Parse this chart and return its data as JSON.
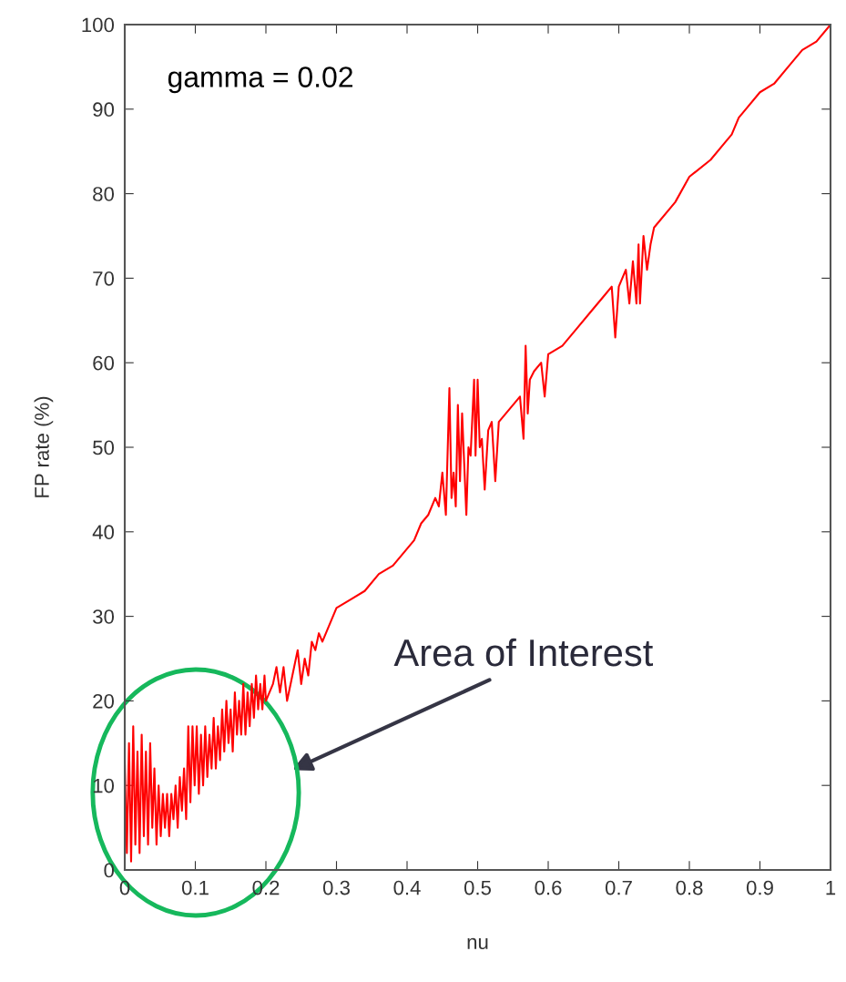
{
  "chart_data": {
    "type": "line",
    "xlabel": "nu",
    "ylabel": "FP rate (%)",
    "xlim": [
      0,
      1
    ],
    "ylim": [
      0,
      100
    ],
    "xticks": [
      0,
      0.1,
      0.2,
      0.3,
      0.4,
      0.5,
      0.6,
      0.7,
      0.8,
      0.9,
      1
    ],
    "yticks": [
      0,
      10,
      20,
      30,
      40,
      50,
      60,
      70,
      80,
      90,
      100
    ],
    "grid": false,
    "legend": false,
    "marker": "none",
    "line_style": "solid",
    "annotations": [
      "gamma = 0.02",
      "Area of Interest"
    ],
    "series": [
      {
        "color": "#ff0000",
        "x": [
          0,
          0.003,
          0.006,
          0.009,
          0.012,
          0.015,
          0.018,
          0.021,
          0.024,
          0.027,
          0.03,
          0.033,
          0.036,
          0.039,
          0.042,
          0.045,
          0.048,
          0.051,
          0.054,
          0.057,
          0.06,
          0.063,
          0.066,
          0.069,
          0.072,
          0.075,
          0.078,
          0.081,
          0.084,
          0.087,
          0.09,
          0.093,
          0.096,
          0.099,
          0.102,
          0.105,
          0.108,
          0.111,
          0.114,
          0.117,
          0.12,
          0.123,
          0.126,
          0.129,
          0.132,
          0.135,
          0.138,
          0.141,
          0.144,
          0.147,
          0.15,
          0.153,
          0.156,
          0.159,
          0.162,
          0.165,
          0.168,
          0.171,
          0.174,
          0.177,
          0.18,
          0.183,
          0.186,
          0.189,
          0.192,
          0.195,
          0.198,
          0.2,
          0.21,
          0.215,
          0.22,
          0.225,
          0.23,
          0.24,
          0.245,
          0.25,
          0.255,
          0.26,
          0.265,
          0.27,
          0.275,
          0.28,
          0.29,
          0.3,
          0.32,
          0.34,
          0.36,
          0.38,
          0.4,
          0.41,
          0.42,
          0.43,
          0.44,
          0.445,
          0.45,
          0.455,
          0.46,
          0.463,
          0.466,
          0.469,
          0.472,
          0.475,
          0.478,
          0.481,
          0.484,
          0.487,
          0.49,
          0.495,
          0.497,
          0.5,
          0.503,
          0.506,
          0.51,
          0.515,
          0.52,
          0.525,
          0.53,
          0.54,
          0.55,
          0.56,
          0.565,
          0.568,
          0.571,
          0.574,
          0.58,
          0.59,
          0.595,
          0.6,
          0.62,
          0.64,
          0.66,
          0.68,
          0.69,
          0.695,
          0.7,
          0.71,
          0.715,
          0.72,
          0.725,
          0.728,
          0.73,
          0.735,
          0.74,
          0.745,
          0.75,
          0.78,
          0.8,
          0.83,
          0.85,
          0.86,
          0.87,
          0.88,
          0.9,
          0.92,
          0.94,
          0.96,
          0.98,
          1.0
        ],
        "values": [
          13,
          2,
          15,
          1,
          17,
          3,
          14,
          2,
          16,
          4,
          14,
          3,
          15,
          5,
          12,
          3,
          10,
          4,
          9,
          5,
          9,
          4,
          9,
          6,
          10,
          5,
          11,
          7,
          12,
          6,
          17,
          8,
          17,
          10,
          17,
          9,
          16,
          10,
          17,
          11,
          16,
          12,
          18,
          12,
          17,
          13,
          19,
          14,
          20,
          15,
          19,
          14,
          21,
          16,
          20,
          16,
          22,
          16,
          21,
          17,
          22,
          18,
          23,
          19,
          22,
          19,
          23,
          20,
          22,
          24,
          21,
          24,
          20,
          24,
          26,
          22,
          25,
          23,
          27,
          26,
          28,
          27,
          29,
          31,
          32,
          33,
          35,
          36,
          38,
          39,
          41,
          42,
          44,
          43,
          47,
          42,
          57,
          44,
          47,
          43,
          55,
          46,
          54,
          48,
          42,
          50,
          49,
          58,
          49,
          58,
          50,
          51,
          45,
          52,
          53,
          46,
          53,
          54,
          55,
          56,
          51,
          62,
          54,
          58,
          59,
          60,
          56,
          61,
          62,
          64,
          66,
          68,
          69,
          63,
          69,
          71,
          67,
          72,
          67,
          74,
          67,
          75,
          71,
          74,
          76,
          79,
          82,
          84,
          86,
          87,
          89,
          90,
          92,
          93,
          95,
          97,
          98,
          100
        ]
      }
    ]
  }
}
